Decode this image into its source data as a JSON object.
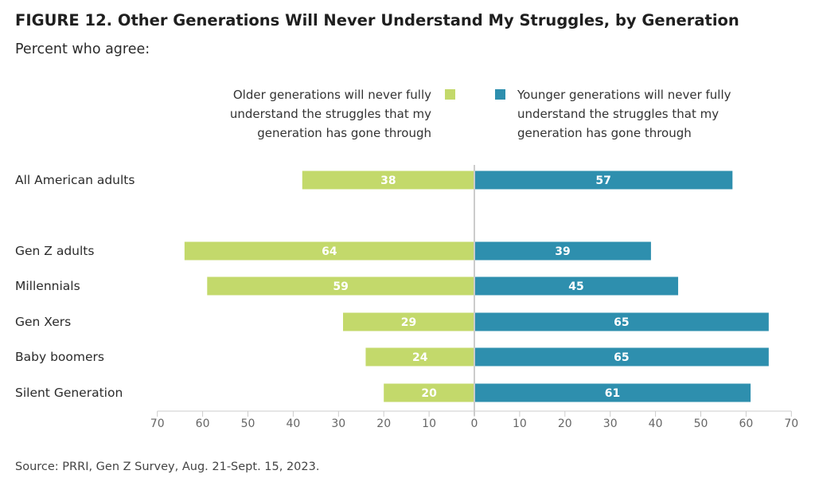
{
  "header": {
    "title": "FIGURE 12.  Other Generations Will Never Understand My Struggles, by Generation",
    "subtitle": "Percent who agree:"
  },
  "legend": {
    "left_label": "Older generations will never fully understand the struggles that my generation has gone through",
    "right_label": "Younger generations will never fully understand the struggles that my generation has gone through"
  },
  "footer": {
    "source": "Source: PRRI, Gen Z Survey, Aug. 21-Sept. 15, 2023."
  },
  "colors": {
    "older": "#c3d96b",
    "younger": "#2e8fae",
    "axis": "#cccccc"
  },
  "chart_data": {
    "type": "bar",
    "orientation": "horizontal-diverging",
    "categories": [
      "All American adults",
      "Gen Z adults",
      "Millennials",
      "Gen Xers",
      "Baby boomers",
      "Silent Generation"
    ],
    "series": [
      {
        "name": "Older generations will never fully understand the struggles that my generation has gone through",
        "values": [
          38,
          64,
          59,
          29,
          24,
          20
        ]
      },
      {
        "name": "Younger generations will never fully understand the struggles that my generation has gone through",
        "values": [
          57,
          39,
          45,
          65,
          65,
          61
        ]
      }
    ],
    "tick_labels": [
      "70",
      "60",
      "50",
      "40",
      "30",
      "20",
      "10",
      "0",
      "10",
      "20",
      "30",
      "40",
      "50",
      "60",
      "70"
    ],
    "xlim": [
      -70,
      70
    ],
    "legend_position": "top",
    "grid": false
  }
}
